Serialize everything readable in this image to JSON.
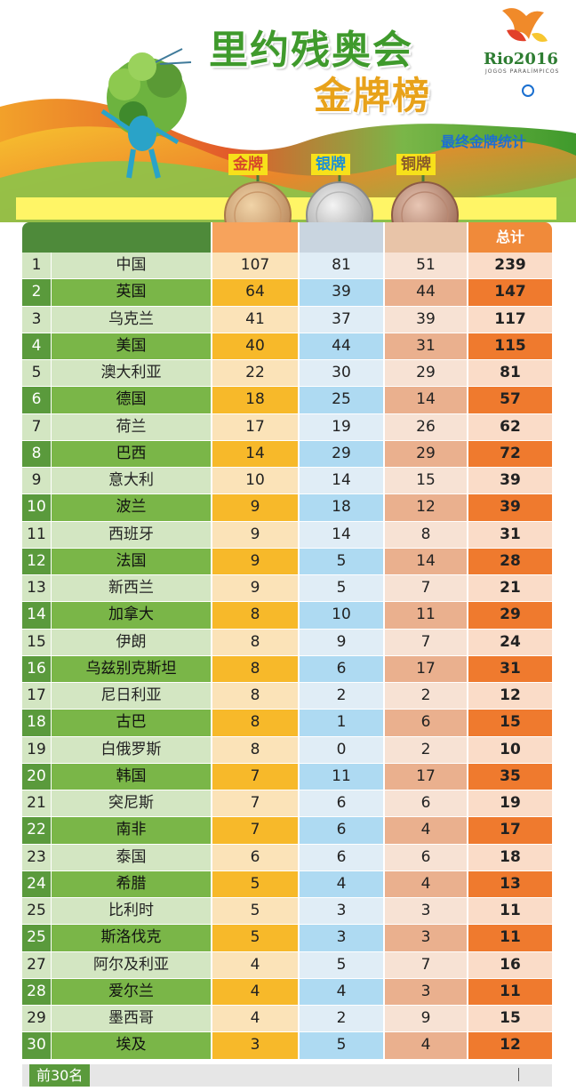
{
  "header": {
    "title_line1": "里约残奥会",
    "title_line2": "金牌榜",
    "subtitle": "最终金牌统计",
    "logo_text": "Rio2016",
    "logo_sub": "JOGOS PARALÍMPICOS",
    "gold_label": "金牌",
    "silver_label": "银牌",
    "bronze_label": "铜牌",
    "total_label": "总计"
  },
  "footer": {
    "label": "前30名"
  },
  "colors": {
    "gold": "#f7b92a",
    "silver": "#aedaf2",
    "bronze": "#eab08e",
    "total": "#ef7a2e",
    "green": "#7ab648"
  },
  "chart_data": {
    "type": "table",
    "columns": [
      "",
      "",
      "金牌",
      "银牌",
      "铜牌",
      "总计"
    ],
    "rows": [
      {
        "rank": "1",
        "country": "中国",
        "gold": 107,
        "silver": 81,
        "bronze": 51,
        "total": 239
      },
      {
        "rank": "2",
        "country": "英国",
        "gold": 64,
        "silver": 39,
        "bronze": 44,
        "total": 147
      },
      {
        "rank": "3",
        "country": "乌克兰",
        "gold": 41,
        "silver": 37,
        "bronze": 39,
        "total": 117
      },
      {
        "rank": "4",
        "country": "美国",
        "gold": 40,
        "silver": 44,
        "bronze": 31,
        "total": 115
      },
      {
        "rank": "5",
        "country": "澳大利亚",
        "gold": 22,
        "silver": 30,
        "bronze": 29,
        "total": 81
      },
      {
        "rank": "6",
        "country": "德国",
        "gold": 18,
        "silver": 25,
        "bronze": 14,
        "total": 57
      },
      {
        "rank": "7",
        "country": "荷兰",
        "gold": 17,
        "silver": 19,
        "bronze": 26,
        "total": 62
      },
      {
        "rank": "8",
        "country": "巴西",
        "gold": 14,
        "silver": 29,
        "bronze": 29,
        "total": 72
      },
      {
        "rank": "9",
        "country": "意大利",
        "gold": 10,
        "silver": 14,
        "bronze": 15,
        "total": 39
      },
      {
        "rank": "10",
        "country": "波兰",
        "gold": 9,
        "silver": 18,
        "bronze": 12,
        "total": 39
      },
      {
        "rank": "11",
        "country": "西班牙",
        "gold": 9,
        "silver": 14,
        "bronze": 8,
        "total": 31
      },
      {
        "rank": "12",
        "country": "法国",
        "gold": 9,
        "silver": 5,
        "bronze": 14,
        "total": 28
      },
      {
        "rank": "13",
        "country": "新西兰",
        "gold": 9,
        "silver": 5,
        "bronze": 7,
        "total": 21
      },
      {
        "rank": "14",
        "country": "加拿大",
        "gold": 8,
        "silver": 10,
        "bronze": 11,
        "total": 29
      },
      {
        "rank": "15",
        "country": "伊朗",
        "gold": 8,
        "silver": 9,
        "bronze": 7,
        "total": 24
      },
      {
        "rank": "16",
        "country": "乌兹别克斯坦",
        "gold": 8,
        "silver": 6,
        "bronze": 17,
        "total": 31
      },
      {
        "rank": "17",
        "country": "尼日利亚",
        "gold": 8,
        "silver": 2,
        "bronze": 2,
        "total": 12
      },
      {
        "rank": "18",
        "country": "古巴",
        "gold": 8,
        "silver": 1,
        "bronze": 6,
        "total": 15
      },
      {
        "rank": "19",
        "country": "白俄罗斯",
        "gold": 8,
        "silver": 0,
        "bronze": 2,
        "total": 10
      },
      {
        "rank": "20",
        "country": "韩国",
        "gold": 7,
        "silver": 11,
        "bronze": 17,
        "total": 35
      },
      {
        "rank": "21",
        "country": "突尼斯",
        "gold": 7,
        "silver": 6,
        "bronze": 6,
        "total": 19
      },
      {
        "rank": "22",
        "country": "南非",
        "gold": 7,
        "silver": 6,
        "bronze": 4,
        "total": 17
      },
      {
        "rank": "23",
        "country": "泰国",
        "gold": 6,
        "silver": 6,
        "bronze": 6,
        "total": 18
      },
      {
        "rank": "24",
        "country": "希腊",
        "gold": 5,
        "silver": 4,
        "bronze": 4,
        "total": 13
      },
      {
        "rank": "25",
        "country": "比利时",
        "gold": 5,
        "silver": 3,
        "bronze": 3,
        "total": 11
      },
      {
        "rank": "25",
        "country": "斯洛伐克",
        "gold": 5,
        "silver": 3,
        "bronze": 3,
        "total": 11
      },
      {
        "rank": "27",
        "country": "阿尔及利亚",
        "gold": 4,
        "silver": 5,
        "bronze": 7,
        "total": 16
      },
      {
        "rank": "28",
        "country": "爱尔兰",
        "gold": 4,
        "silver": 4,
        "bronze": 3,
        "total": 11
      },
      {
        "rank": "29",
        "country": "墨西哥",
        "gold": 4,
        "silver": 2,
        "bronze": 9,
        "total": 15
      },
      {
        "rank": "30",
        "country": "埃及",
        "gold": 3,
        "silver": 5,
        "bronze": 4,
        "total": 12
      }
    ]
  }
}
